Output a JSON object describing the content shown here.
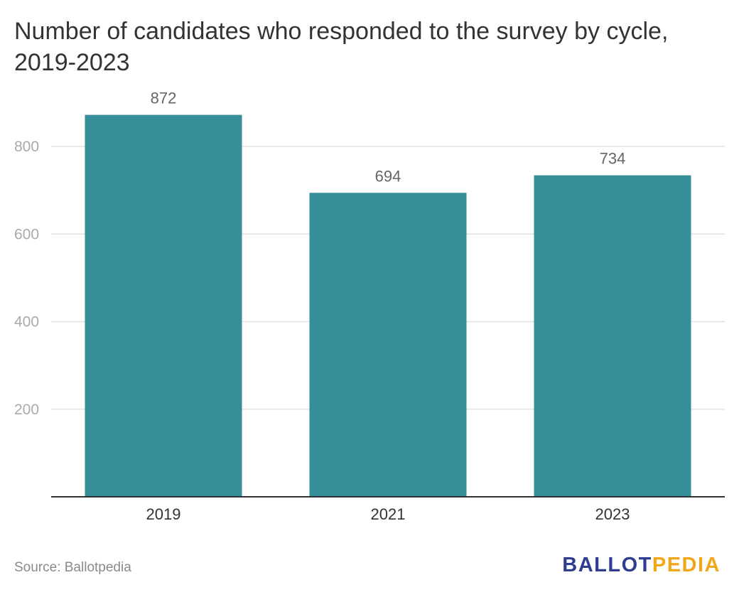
{
  "title": "Number of candidates who responded to the survey by cycle, 2019-2023",
  "source": "Source: Ballotpedia",
  "logo": {
    "part1": "BALLOT",
    "part2": "PEDIA"
  },
  "colors": {
    "bar": "#368e99",
    "grid": "#e2e2e2",
    "axis": "#333333",
    "tick_label_y": "#aaaaaa",
    "tick_label_x": "#333333",
    "data_label": "#666666",
    "logo_blue": "#2e3d8f",
    "logo_gold": "#f0a81a"
  },
  "chart_data": {
    "type": "bar",
    "title": "Number of candidates who responded to the survey by cycle, 2019-2023",
    "categories": [
      "2019",
      "2021",
      "2023"
    ],
    "values": [
      872,
      694,
      734
    ],
    "xlabel": "",
    "ylabel": "",
    "ylim": [
      0,
      900
    ],
    "yticks": [
      200,
      400,
      600,
      800
    ],
    "grid": true,
    "data_labels": true
  }
}
